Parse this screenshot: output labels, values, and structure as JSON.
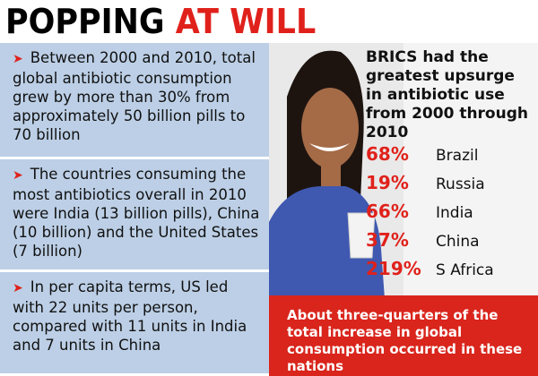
{
  "header": {
    "title_black": "POPPING",
    "title_red": "AT WILL"
  },
  "bullets": [
    "Between 2000 and 2010, total global antibiotic consumption grew by more than 30% from approximately 50 billion pills to 70 billion",
    "The countries consuming the most antibiotics overall in 2010 were India (13 billion pills), China (10 billion) and the United States (7 billion)",
    "In per capita terms, US led with 22 units per person, compared with 11 units in India and 7 units in China"
  ],
  "brics": {
    "heading": "BRICS had the greatest upsurge in antibiotic use from 2000 through 2010",
    "rows": [
      {
        "pct": "68%",
        "country": "Brazil"
      },
      {
        "pct": "19%",
        "country": "Russia"
      },
      {
        "pct": "66%",
        "country": "India"
      },
      {
        "pct": "37%",
        "country": "China"
      },
      {
        "pct": "219%",
        "country": "S Africa"
      }
    ],
    "note": "About three-quarters of the total increase in global consumption occurred in these nations"
  }
}
